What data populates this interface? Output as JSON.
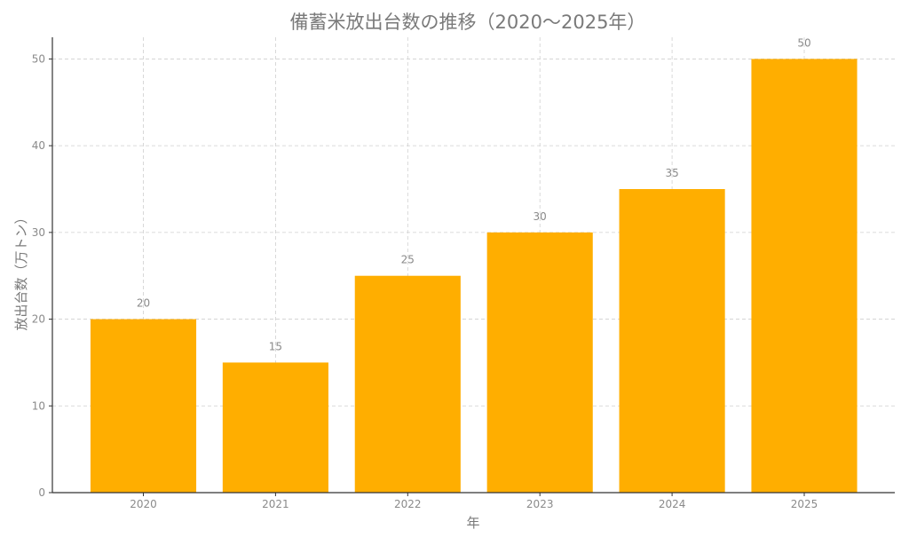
{
  "chart_data": {
    "type": "bar",
    "title": "備蓄米放出台数の推移（2020〜2025年）",
    "xlabel": "年",
    "ylabel": "放出台数（万トン）",
    "categories": [
      "2020",
      "2021",
      "2022",
      "2023",
      "2024",
      "2025"
    ],
    "values": [
      20,
      15,
      25,
      30,
      35,
      50
    ],
    "data_labels": [
      "20",
      "15",
      "25",
      "30",
      "35",
      "50"
    ],
    "ylim": [
      0,
      52.5
    ],
    "yticks": [
      0,
      10,
      20,
      30,
      40,
      50
    ],
    "ytick_labels": [
      "0",
      "10",
      "20",
      "30",
      "40",
      "50"
    ],
    "grid": true,
    "legend": "none",
    "bar_color": "#FFAE00"
  }
}
